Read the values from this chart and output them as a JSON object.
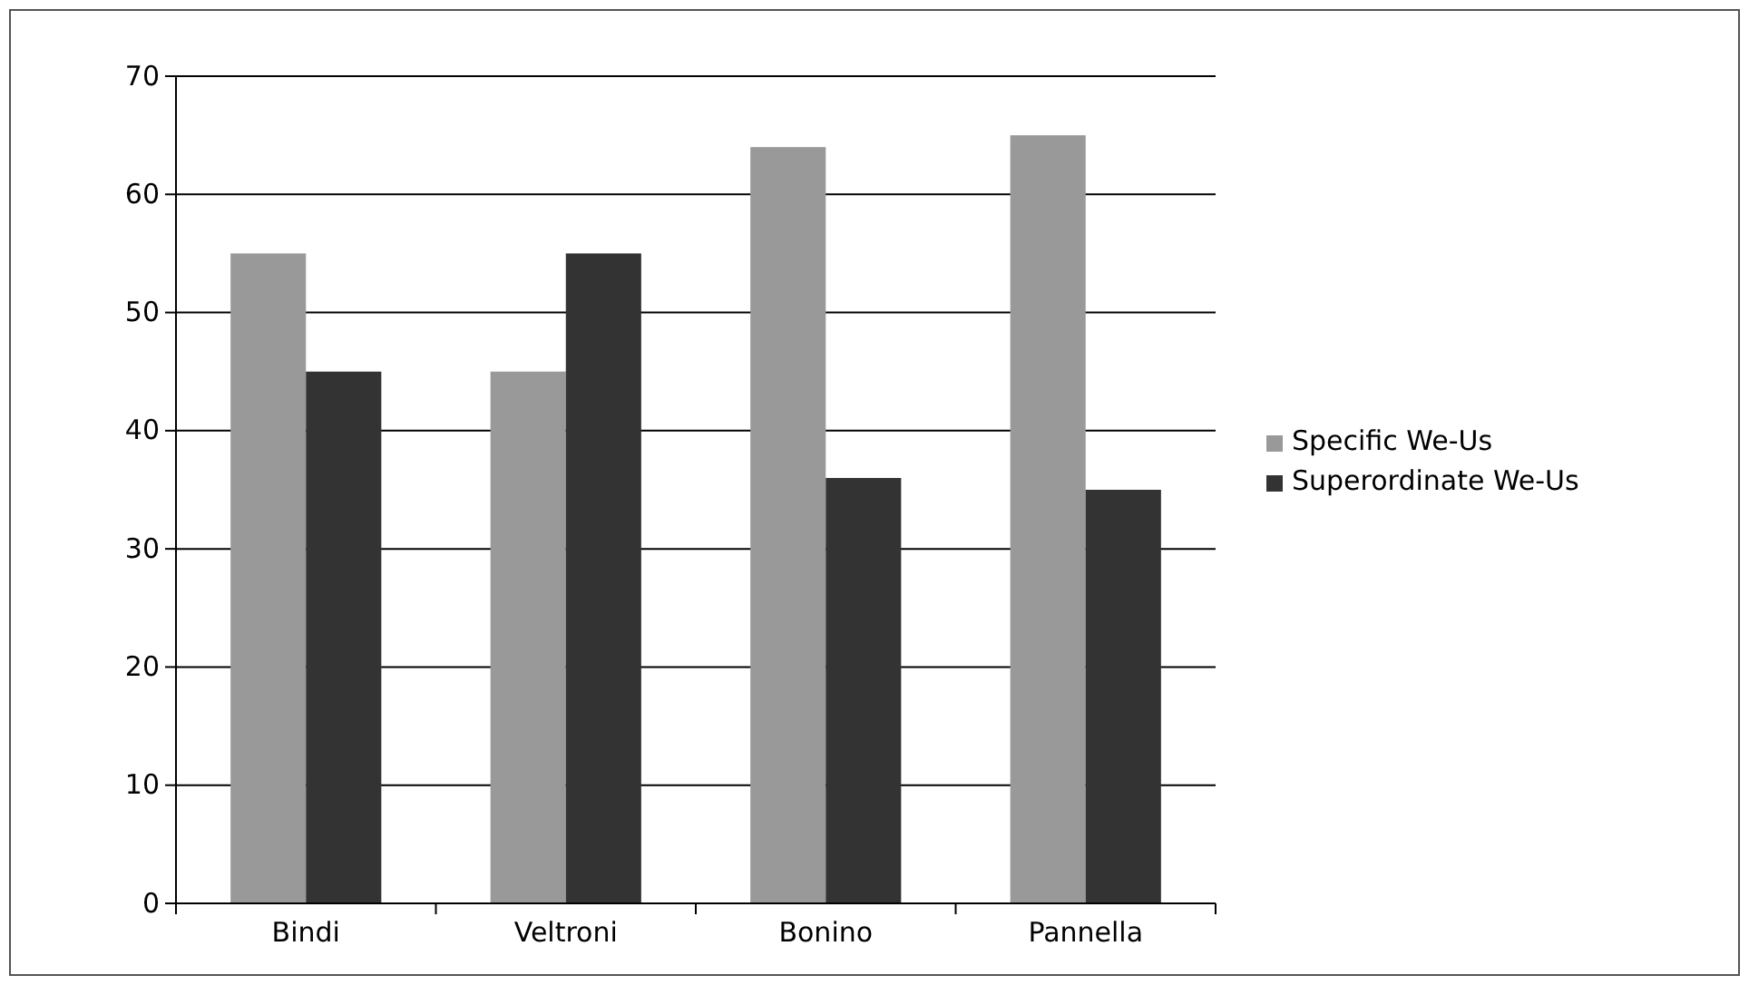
{
  "chart_data": {
    "type": "bar",
    "categories": [
      "Bindi",
      "Veltroni",
      "Bonino",
      "Pannella"
    ],
    "series": [
      {
        "name": "Specific We-Us",
        "color": "#999999",
        "values": [
          55,
          45,
          64,
          65
        ]
      },
      {
        "name": "Superordinate We-Us",
        "color": "#333333",
        "values": [
          45,
          55,
          36,
          35
        ]
      }
    ],
    "ylim": [
      0,
      70
    ],
    "yticks": [
      0,
      10,
      20,
      30,
      40,
      50,
      60,
      70
    ],
    "grid": "y",
    "legend": "right"
  }
}
